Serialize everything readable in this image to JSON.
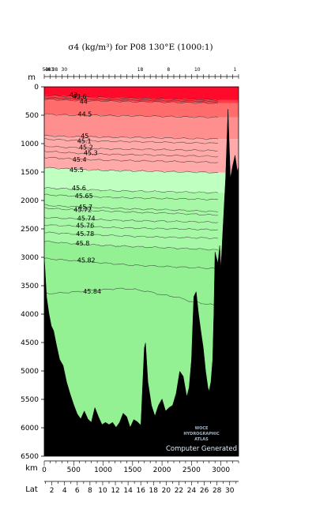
{
  "chart_data": {
    "type": "area",
    "title": "σ4 (kg/m³) for P08 130°E (1000:1)",
    "ylabel": "m",
    "xlabel": "km",
    "lat_label": "Lat",
    "ylim": [
      0,
      6500
    ],
    "xlim": [
      0,
      3300
    ],
    "y_ticks": [
      0,
      500,
      1000,
      1500,
      2000,
      2500,
      3000,
      3500,
      4000,
      4500,
      5000,
      5500,
      6000,
      6500
    ],
    "y_tick_labels": [
      "0",
      "500",
      "1000",
      "1500",
      "2000",
      "2500",
      "3000",
      "3500",
      "4000",
      "4500",
      "5000",
      "5500",
      "6000",
      "6500"
    ],
    "x_ticks": [
      0,
      500,
      1000,
      1500,
      2000,
      2500,
      3000
    ],
    "x_tick_labels": [
      "0",
      "500",
      "1000",
      "1500",
      "2000",
      "2500",
      "3000"
    ],
    "lat_ticks": [
      2,
      4,
      6,
      8,
      10,
      12,
      14,
      16,
      18,
      20,
      22,
      24,
      26,
      28,
      30
    ],
    "lat_tick_labels": [
      "2",
      "4",
      "6",
      "8",
      "10",
      "12",
      "14",
      "16",
      "18",
      "20",
      "22",
      "24",
      "26",
      "28",
      "30"
    ],
    "lat_range": [
      0.8,
      31.4
    ],
    "station_labels": [
      "53",
      "48",
      "43",
      "38",
      "30",
      "18",
      "8",
      "10",
      "1"
    ],
    "station_km": [
      20,
      60,
      110,
      180,
      340,
      1630,
      2110,
      2600,
      3240
    ],
    "isopycnals": [
      {
        "label": "43",
        "depth": [
          150,
          160,
          170,
          180,
          185,
          190,
          200,
          205,
          210,
          215,
          220,
          225,
          230
        ],
        "label_km": 430,
        "label_depth": 140
      },
      {
        "label": "43.6",
        "depth": [
          190,
          200,
          210,
          215,
          220,
          225,
          230,
          235,
          240,
          245,
          250,
          255,
          260
        ],
        "label_km": 480,
        "label_depth": 165
      },
      {
        "label": "44",
        "depth": [
          220,
          230,
          240,
          245,
          250,
          255,
          260,
          265,
          270,
          275,
          280,
          285,
          290
        ],
        "label_km": 600,
        "label_depth": 255
      },
      {
        "label": "44.5",
        "depth": [
          480,
          490,
          500,
          500,
          505,
          510,
          510,
          515,
          520,
          525,
          530,
          535,
          540
        ],
        "label_km": 570,
        "label_depth": 480
      },
      {
        "label": "45",
        "depth": [
          860,
          870,
          880,
          880,
          885,
          890,
          890,
          895,
          900,
          905,
          910,
          915,
          920
        ],
        "label_km": 620,
        "label_depth": 860
      },
      {
        "label": "45.1",
        "depth": [
          920,
          930,
          945,
          950,
          955,
          960,
          965,
          970,
          975,
          980,
          985,
          990,
          995
        ],
        "label_km": 560,
        "label_depth": 950
      },
      {
        "label": "45.2",
        "depth": [
          1040,
          1060,
          1070,
          1080,
          1090,
          1095,
          1100,
          1100,
          1105,
          1110,
          1115,
          1120,
          1125
        ],
        "label_km": 590,
        "label_depth": 1060
      },
      {
        "label": "45.3",
        "depth": [
          1130,
          1150,
          1165,
          1175,
          1185,
          1190,
          1195,
          1200,
          1205,
          1210,
          1215,
          1220,
          1225
        ],
        "label_km": 670,
        "label_depth": 1160
      },
      {
        "label": "45.4",
        "depth": [
          1240,
          1255,
          1270,
          1280,
          1290,
          1295,
          1300,
          1305,
          1310,
          1315,
          1320,
          1325,
          1330
        ],
        "label_km": 480,
        "label_depth": 1280
      },
      {
        "label": "45.5",
        "depth": [
          1420,
          1435,
          1450,
          1460,
          1470,
          1475,
          1480,
          1485,
          1490,
          1495,
          1500,
          1505,
          1510
        ],
        "label_km": 430,
        "label_depth": 1460
      },
      {
        "label": "45.6",
        "depth": [
          1780,
          1790,
          1800,
          1810,
          1820,
          1830,
          1835,
          1840,
          1845,
          1850,
          1855,
          1860,
          1865
        ],
        "label_km": 470,
        "label_depth": 1780
      },
      {
        "label": "45.65",
        "depth": [
          1900,
          1910,
          1920,
          1930,
          1940,
          1950,
          1955,
          1960,
          1965,
          1970,
          1975,
          1980,
          1985
        ],
        "label_km": 520,
        "label_depth": 1920
      },
      {
        "label": "45.7",
        "depth": [
          2080,
          2100,
          2110,
          2120,
          2130,
          2140,
          2150,
          2155,
          2160,
          2170,
          2180,
          2190,
          2200
        ],
        "label_km": 580,
        "label_depth": 2110
      },
      {
        "label": "45.72",
        "depth": [
          2130,
          2150,
          2160,
          2175,
          2185,
          2195,
          2205,
          2215,
          2220,
          2230,
          2240,
          2250,
          2260
        ],
        "label_km": 500,
        "label_depth": 2160
      },
      {
        "label": "45.74",
        "depth": [
          2300,
          2310,
          2320,
          2330,
          2340,
          2350,
          2355,
          2360,
          2365,
          2370,
          2375,
          2380,
          2385
        ],
        "label_km": 560,
        "label_depth": 2310
      },
      {
        "label": "45.76",
        "depth": [
          2430,
          2440,
          2450,
          2460,
          2470,
          2480,
          2485,
          2490,
          2495,
          2500,
          2505,
          2510,
          2515
        ],
        "label_km": 540,
        "label_depth": 2440
      },
      {
        "label": "45.78",
        "depth": [
          2560,
          2575,
          2590,
          2600,
          2610,
          2620,
          2630,
          2640,
          2645,
          2650,
          2655,
          2660,
          2665
        ],
        "label_km": 540,
        "label_depth": 2580
      },
      {
        "label": "45.8",
        "depth": [
          2720,
          2740,
          2760,
          2775,
          2790,
          2800,
          2810,
          2820,
          2830,
          2840,
          2850,
          2860,
          2870
        ],
        "label_km": 530,
        "label_depth": 2750
      },
      {
        "label": "45.82",
        "depth": [
          3020,
          3040,
          3060,
          3080,
          3100,
          3120,
          3140,
          3150,
          3160,
          3170,
          3180,
          3190,
          3200
        ],
        "label_km": 560,
        "label_depth": 3050
      },
      {
        "label": "45.84",
        "depth": [
          3640,
          3630,
          3610,
          3590,
          3570,
          3550,
          3560,
          3600,
          3660,
          3700,
          3780,
          3820,
          3850
        ],
        "label_km": 660,
        "label_depth": 3600
      }
    ],
    "isopycnal_km": [
      0,
      250,
      500,
      750,
      1000,
      1250,
      1500,
      1750,
      2000,
      2250,
      2500,
      2750,
      2950
    ],
    "color_zones": [
      {
        "color": "#ff0a2a",
        "max_isopycnal": "43"
      },
      {
        "color": "#ff3b47",
        "max_isopycnal": "44"
      },
      {
        "color": "#ff6c6c",
        "max_isopycnal": "44.5"
      },
      {
        "color": "#ff8f8f",
        "max_isopycnal": "45"
      },
      {
        "color": "#ffa9a9",
        "max_isopycnal": "45.5"
      },
      {
        "color": "#bfffbf",
        "max_isopycnal": "45.6"
      },
      {
        "color": "#a6f7a6",
        "max_isopycnal": "45.8"
      },
      {
        "color": "#93f093",
        "max_isopycnal": "bottom"
      }
    ],
    "bottom_km": [
      0,
      40,
      80,
      120,
      160,
      200,
      260,
      320,
      380,
      440,
      500,
      560,
      620,
      680,
      740,
      800,
      860,
      920,
      980,
      1040,
      1100,
      1160,
      1220,
      1280,
      1340,
      1400,
      1460,
      1520,
      1580,
      1640,
      1700,
      1720,
      1760,
      1820,
      1880,
      1940,
      2000,
      2060,
      2120,
      2180,
      2240,
      2300,
      2360,
      2420,
      2460,
      2500,
      2540,
      2580,
      2620,
      2660,
      2700,
      2740,
      2780,
      2800,
      2830,
      2860,
      2880,
      2900,
      2920,
      2950,
      2980,
      3000,
      3040,
      3080,
      3120,
      3160,
      3200,
      3240,
      3280,
      3300
    ],
    "bottom_depth": [
      3000,
      3700,
      4000,
      4200,
      4300,
      4500,
      4800,
      4900,
      5200,
      5400,
      5600,
      5750,
      5850,
      5700,
      5850,
      5900,
      5650,
      5800,
      5950,
      5900,
      5950,
      5900,
      6000,
      5900,
      5750,
      5800,
      6000,
      5850,
      5900,
      5950,
      4600,
      4500,
      5200,
      5600,
      5800,
      5600,
      5500,
      5700,
      5650,
      5600,
      5400,
      5000,
      5100,
      5450,
      5300,
      4800,
      3700,
      3600,
      4000,
      4300,
      4600,
      5000,
      5300,
      5350,
      5200,
      4800,
      4000,
      2900,
      3000,
      3100,
      2800,
      3200,
      2400,
      1600,
      400,
      1600,
      1400,
      1200,
      1500,
      1400
    ],
    "watermark": [
      "WOCE",
      "HYDROGRAPHIC",
      "ATLAS"
    ],
    "footer_note": "Computer Generated"
  }
}
